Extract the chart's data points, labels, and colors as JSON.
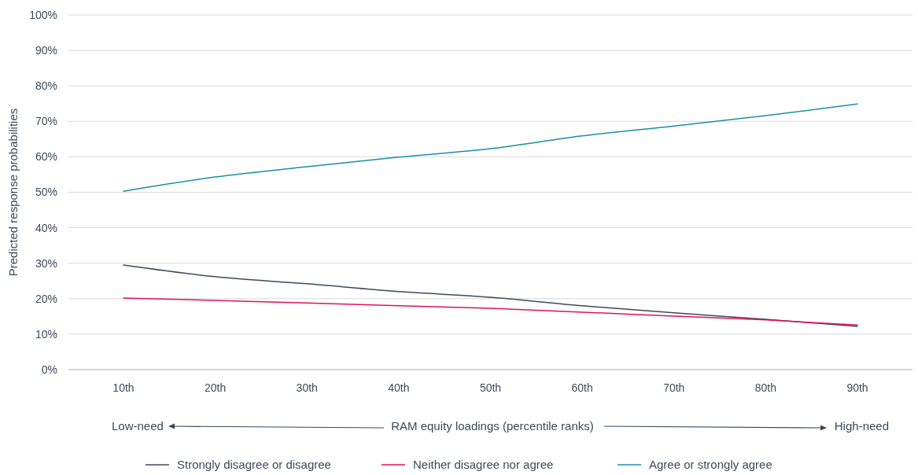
{
  "chart_data": {
    "type": "line",
    "xlabel": "RAM equity loadings (percentile ranks)",
    "ylabel": "Predicted response probabilities",
    "categories": [
      "10th",
      "20th",
      "30th",
      "40th",
      "50th",
      "60th",
      "70th",
      "80th",
      "90th"
    ],
    "series": [
      {
        "name": "Strongly disagree or disagree",
        "color": "#3d4a5c",
        "values": [
          29.5,
          26.2,
          24.2,
          22.0,
          20.4,
          18.0,
          16.0,
          14.2,
          12.2
        ]
      },
      {
        "name": "Neither disagree nor agree",
        "color": "#e0115f",
        "values": [
          20.2,
          19.5,
          18.8,
          18.0,
          17.3,
          16.2,
          15.1,
          14.0,
          12.6
        ]
      },
      {
        "name": "Agree or strongly agree",
        "color": "#1a8fa6",
        "values": [
          50.3,
          54.3,
          57.2,
          59.9,
          62.3,
          65.9,
          68.7,
          71.6,
          74.9
        ]
      }
    ],
    "ylim": [
      0,
      100
    ],
    "yticks": [
      {
        "value": 0,
        "label": "0%"
      },
      {
        "value": 10,
        "label": "10%"
      },
      {
        "value": 20,
        "label": "20%"
      },
      {
        "value": 30,
        "label": "30%"
      },
      {
        "value": 40,
        "label": "40%"
      },
      {
        "value": 50,
        "label": "50%"
      },
      {
        "value": 60,
        "label": "60%"
      },
      {
        "value": 70,
        "label": "70%"
      },
      {
        "value": 80,
        "label": "80%"
      },
      {
        "value": 90,
        "label": "90%"
      },
      {
        "value": 100,
        "label": "100%"
      }
    ],
    "grid": "y",
    "legend": "bottom",
    "marker": "none",
    "line_style": "solid",
    "annotations": [
      "Low-need",
      "High-need"
    ]
  }
}
